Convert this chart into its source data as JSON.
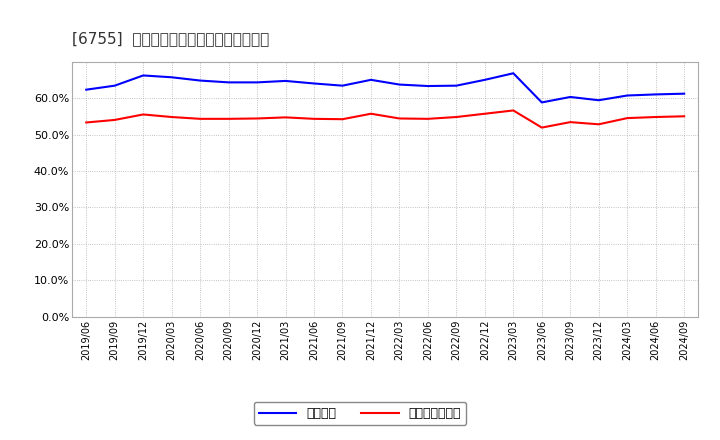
{
  "title": "[6755]  固定比率、固定長期適合率の推移",
  "line1_label": "固定比率",
  "line2_label": "固定長期適合率",
  "line1_color": "#0000ff",
  "line2_color": "#ff0000",
  "background_color": "#ffffff",
  "grid_color": "#b0b0b0",
  "ylim": [
    0.0,
    0.7
  ],
  "yticks": [
    0.0,
    0.1,
    0.2,
    0.3,
    0.4,
    0.5,
    0.6
  ],
  "xlabels": [
    "2019/06",
    "2019/09",
    "2019/12",
    "2020/03",
    "2020/06",
    "2020/09",
    "2020/12",
    "2021/03",
    "2021/06",
    "2021/09",
    "2021/12",
    "2022/03",
    "2022/06",
    "2022/09",
    "2022/12",
    "2023/03",
    "2023/06",
    "2023/09",
    "2023/12",
    "2024/03",
    "2024/06",
    "2024/09"
  ],
  "line1_values": [
    0.623,
    0.634,
    0.662,
    0.657,
    0.648,
    0.643,
    0.643,
    0.647,
    0.64,
    0.634,
    0.65,
    0.637,
    0.633,
    0.634,
    0.65,
    0.668,
    0.588,
    0.603,
    0.594,
    0.607,
    0.61,
    0.612
  ],
  "line2_values": [
    0.533,
    0.54,
    0.555,
    0.548,
    0.543,
    0.543,
    0.544,
    0.547,
    0.543,
    0.542,
    0.557,
    0.544,
    0.543,
    0.548,
    0.557,
    0.566,
    0.519,
    0.534,
    0.528,
    0.545,
    0.548,
    0.55
  ]
}
